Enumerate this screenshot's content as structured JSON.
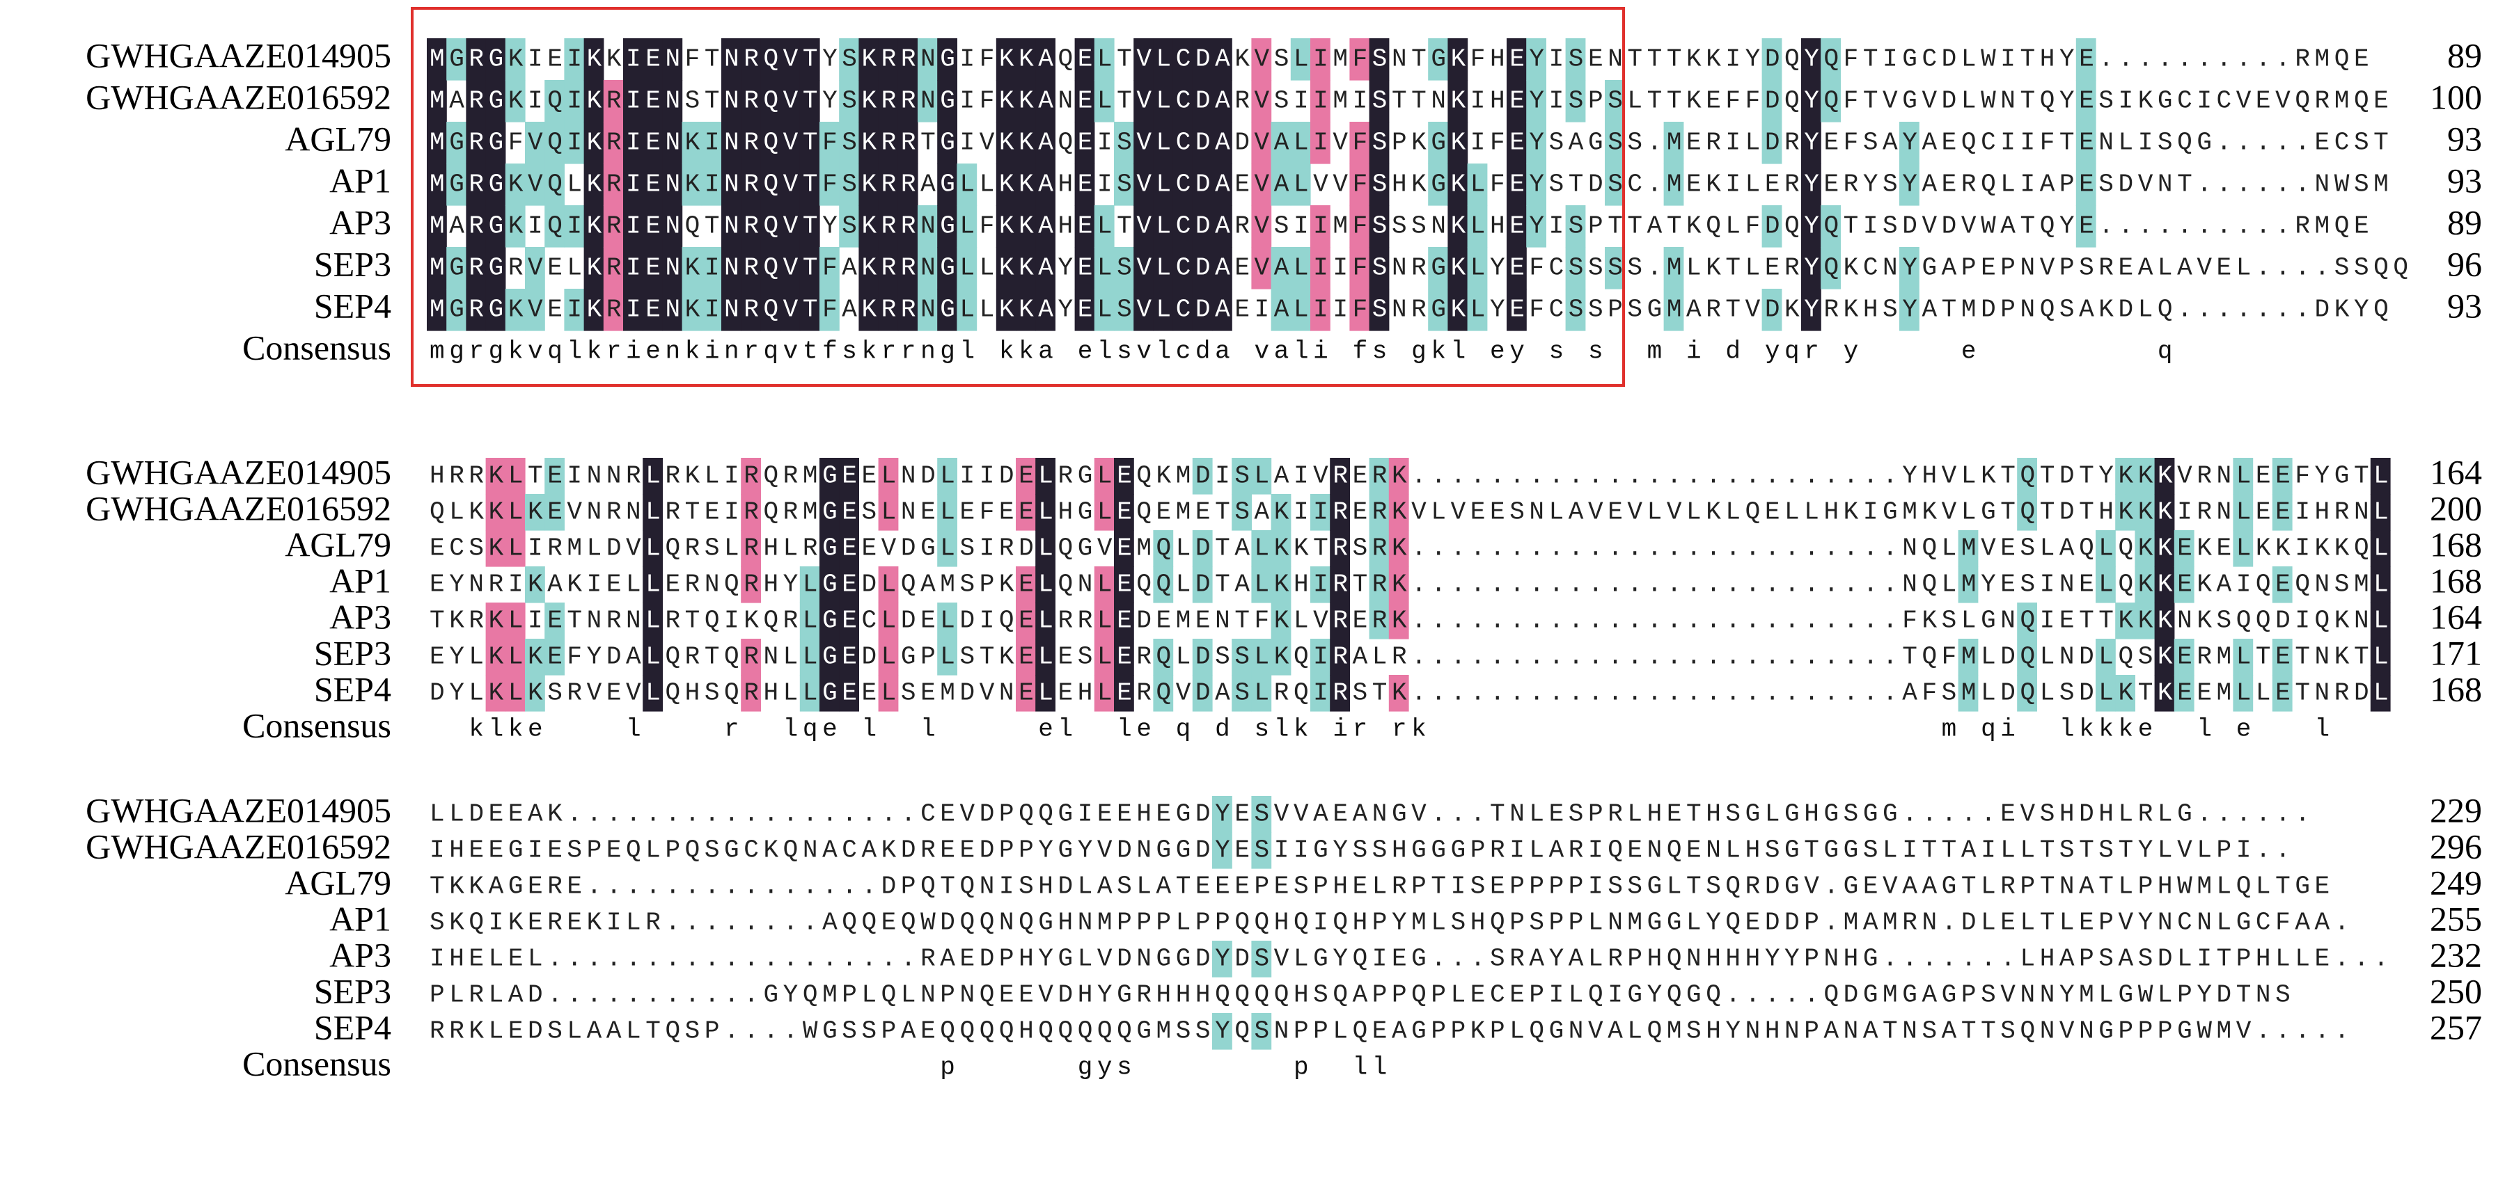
{
  "consensus_label": "Consensus",
  "blocks": [
    {
      "rows": [
        {
          "name": "GWHGAAZE014905",
          "sequence": "MGRGKIEIKKIENFTNRQVTYSKRRNGIFKKAQELTVLCDAKVSLIMFSNTGKFHEYISENTTTKKIYDQYQFTIGCDLWITHYE..........RMQE",
          "end": 89
        },
        {
          "name": "GWHGAAZE016592",
          "sequence": "MARGKIQIKRIENSTNRQVTYSKRRNGIFKKANELTVLCDARVSIIMISTTNKIHEYISPSLTTKEFFDQYQFTVGVDLWNTQYESIKGCICVEVQRMQE",
          "end": 100
        },
        {
          "name": "AGL79",
          "sequence": "MGRGFVQIKRIENKINRQVTFSKRRTGIVKKAQEISVLCDADVALIVFSPKGKIFEYSAGSS.MERILDRYEFSAYAEQCIIFTENLISQG.....ECST",
          "end": 93
        },
        {
          "name": "AP1",
          "sequence": "MGRGKVQLKRIENKINRQVTFSKRRAGLLKKAHEISVLCDAEVALVVFSHKGKLFEYSTDSC.MEKILERYERYSYAERQLIAPESDVNT......NWSM",
          "end": 93
        },
        {
          "name": "AP3",
          "sequence": "MARGKIQIKRIENQTNRQVTYSKRRNGLFKKAHELTVLCDARVSIIMFSSSNKLHEYISPTTATKQLFDQYQTISDVDVWATQYE..........RMQE",
          "end": 89
        },
        {
          "name": "SEP3",
          "sequence": "MGRGRVELKRIENKINRQVTFAKRRNGLLKKAYELSVLCDAEVALIIFSNRGKLYEFCSSSS.MLKTLERYQKCNYGAPEPNVPSREALAVEL....SSQQ",
          "end": 96
        },
        {
          "name": "SEP4",
          "sequence": "MGRGKVEIKRIENKINRQVTFAKRRNGLLKKAYELSVLCDAEIALIIFSNRGKLYEFCSSPSGMARTVDKYRKHSYATMDPNQSAKDLQ.......DKYQ",
          "end": 93
        }
      ],
      "consensus": "mgrgkvqlkrienkinrqvtfskrrngl kka elsvlcda vali fs gkl ey s s  m i d yqr y     e         q"
    },
    {
      "rows": [
        {
          "name": "GWHGAAZE014905",
          "sequence": "HRRKLTEINNRLRKLIRQRMGEELNDLIIDELRGLEQKMDISLAIVRERK.........................YHVLKTQTDTYKKKVRNLEEFYGTL",
          "end": 164
        },
        {
          "name": "GWHGAAZE016592",
          "sequence": "QLKKLKEVNRNLRTEIRQRMGESLNELEFEELHGLEQEMETSAKIIRERKVLVEESNLAVEVLVLKLQELLHKIGMKVLGTQTDTHKKKIRNLEEIHRNL",
          "end": 200
        },
        {
          "name": "AGL79",
          "sequence": "ECSKLIRMLDVLQRSLRHLRGEEVDGLSIRDLQGVEMQLDTALKKTRSRK.........................NQLMVESLAQLQKKEKELKKIKKQL",
          "end": 168
        },
        {
          "name": "AP1",
          "sequence": "EYNRIKAKIELLERNQRHYLGEDLQAMSPKELQNLEQQLDTALKHIRTRK.........................NQLMYESINELQKKEKAIQEQNSML",
          "end": 168
        },
        {
          "name": "AP3",
          "sequence": "TKRKLIETNRNLRTQIKQRLGECLDELDIQELRRLEDEMENTFKLVRERK.........................FKSLGNQIETTKKKNKSQQDIQKNL",
          "end": 164
        },
        {
          "name": "SEP3",
          "sequence": "EYLKLKEFYDALQRTQRNLLGEDLGPLSTKELESLERQLDSSLKQIRALR.........................TQFMLDQLNDLQSKERMLTETNKTL",
          "end": 171
        },
        {
          "name": "SEP4",
          "sequence": "DYLKLKSRVEVLQHSQRHLLGEELSEMDVNELEHLERQVDASLRQIRSTK.........................AFSMLDQLSDLKTKEEMLLETNRDL",
          "end": 168
        }
      ],
      "consensus": "  klke    l    r  lqe l  l     el  le q d slk ir rk                          m qi  lkkke  l e   l"
    },
    {
      "rows": [
        {
          "name": "GWHGAAZE014905",
          "sequence": "LLDEEAK..................CEVDPQQGIEEHEGDYESVVAEANGV...TNLESPRLHETHSGLGHGSGG.....EVSHDHLRLG......",
          "end": 229
        },
        {
          "name": "GWHGAAZE016592",
          "sequence": "IHEEGIESPEQLPQSGCKQNACAKDREEDPPYGYVDNGGDYESIIGYSSHGGGPRILARIQENQENLHSGTGGSLITTAILLTSTSTYLVLPI..",
          "end": 296
        },
        {
          "name": "AGL79",
          "sequence": "TKKAGERE...............DPQTQNISHDLASLATEEEPESPHELRPTISEPPPPISSGLTSQRDGV.GEVAAGTLRPTNATLPHWMLQLTGE",
          "end": 249
        },
        {
          "name": "AP1",
          "sequence": "SKQIKEREKILR........AQQEQWDQQNQGHNMPPPLPPQQHQIQHPYMLSHQPSPPLNMGGLYQEDDP.MAMRN.DLELTLEPVYNCNLGCFAA.",
          "end": 255
        },
        {
          "name": "AP3",
          "sequence": "IHELEL...................RAEDPHYGLVDNGGDYDSVLGYQIEG...SRAYALRPHQNHHHYYPNHG.......LHAPSASDLITPHLLE...",
          "end": 232
        },
        {
          "name": "SEP3",
          "sequence": "PLRLAD...........GYQMPLQLNPNQEEVDHYGRHHHQQQQHSQAPPQPLECEPILQIGYQGQ.....QDGMGAGPSVNNYMLGWLPYDTNS",
          "end": 250
        },
        {
          "name": "SEP4",
          "sequence": "RRKLEDSLAALTQSP....WGSSPAEQQQQHQQQQQGMSSYQSNPPLQEAGPPKPLQGNVALQMSHYNHNPANATNSATTSQNVNGPPPGWMV.....",
          "end": 257
        }
      ],
      "consensus": "                          p      gys        p  ll"
    }
  ]
}
